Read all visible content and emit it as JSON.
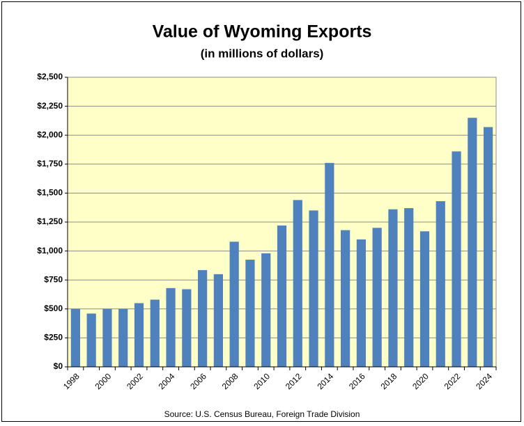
{
  "chart_data": {
    "type": "bar",
    "title": "Value of Wyoming Exports",
    "subtitle": "(in millions of dollars)",
    "source": "Source: U.S. Census Bureau, Foreign Trade Division",
    "categories": [
      "1998",
      null,
      "2000",
      null,
      "2002",
      null,
      "2004",
      null,
      "2006",
      null,
      "2008",
      null,
      "2010",
      null,
      "2012",
      null,
      "2014",
      null,
      "2016",
      null,
      "2018",
      null,
      "2020",
      null,
      "2022",
      null,
      "2024"
    ],
    "values": [
      500,
      460,
      500,
      500,
      550,
      580,
      680,
      670,
      835,
      800,
      1080,
      925,
      980,
      1220,
      1440,
      1350,
      1760,
      1180,
      1100,
      1200,
      1360,
      1370,
      1170,
      1430,
      1860,
      2150,
      2070
    ],
    "color": "#4f81bd",
    "ylim": [
      0,
      2500
    ],
    "yticks": [
      {
        "value": 0,
        "label": "$0"
      },
      {
        "value": 250,
        "label": "$250"
      },
      {
        "value": 500,
        "label": "$500"
      },
      {
        "value": 750,
        "label": "$750"
      },
      {
        "value": 1000,
        "label": "$1,000"
      },
      {
        "value": 1250,
        "label": "$1,250"
      },
      {
        "value": 1500,
        "label": "$1,500"
      },
      {
        "value": 1750,
        "label": "$1,750"
      },
      {
        "value": 2000,
        "label": "$2,000"
      },
      {
        "value": 2250,
        "label": "$2,250"
      },
      {
        "value": 2500,
        "label": "$2,500"
      }
    ],
    "grid": true
  }
}
